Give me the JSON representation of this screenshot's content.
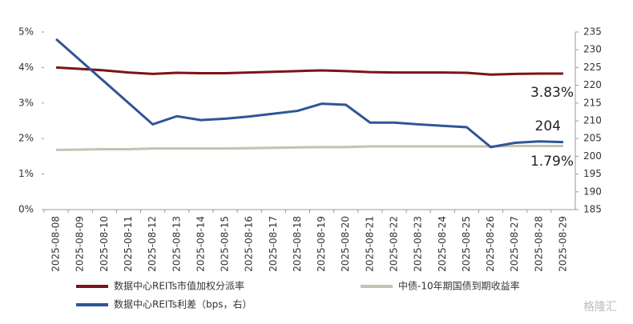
{
  "chart_data": {
    "type": "line",
    "categories": [
      "2025-08-08",
      "2025-08-09",
      "2025-08-10",
      "2025-08-11",
      "2025-08-12",
      "2025-08-13",
      "2025-08-14",
      "2025-08-15",
      "2025-08-16",
      "2025-08-17",
      "2025-08-18",
      "2025-08-19",
      "2025-08-20",
      "2025-08-21",
      "2025-08-22",
      "2025-08-23",
      "2025-08-24",
      "2025-08-25",
      "2025-08-26",
      "2025-08-27",
      "2025-08-28",
      "2025-08-29"
    ],
    "series": [
      {
        "name": "数据中心REITs市值加权分派率",
        "color": "#7b1416",
        "values": [
          4.0,
          3.96,
          3.92,
          3.86,
          3.82,
          3.85,
          3.84,
          3.84,
          3.86,
          3.88,
          3.9,
          3.92,
          3.9,
          3.87,
          3.86,
          3.86,
          3.86,
          3.85,
          3.8,
          3.82,
          3.83,
          3.83
        ]
      },
      {
        "name": "中债-10年期国债到期收益率",
        "color": "#c4c2b1",
        "values": [
          1.68,
          1.69,
          1.7,
          1.7,
          1.72,
          1.72,
          1.72,
          1.72,
          1.73,
          1.74,
          1.75,
          1.76,
          1.76,
          1.78,
          1.78,
          1.78,
          1.78,
          1.78,
          1.78,
          1.79,
          1.79,
          1.79
        ]
      },
      {
        "name": "数据中心REITs利差（bps，右）",
        "color": "#2f5597",
        "axis": "y2",
        "values": [
          233,
          227,
          221,
          215,
          209,
          211.3,
          210.2,
          210.6,
          211.2,
          212,
          212.8,
          214.8,
          214.5,
          209.5,
          209.5,
          209,
          208.6,
          208.2,
          202.6,
          203.8,
          204.2,
          204
        ]
      }
    ],
    "ylim": [
      0,
      5
    ],
    "yticks": [
      {
        "value": 0,
        "label": "0%"
      },
      {
        "value": 1,
        "label": "1%"
      },
      {
        "value": 2,
        "label": "2%"
      },
      {
        "value": 3,
        "label": "3%"
      },
      {
        "value": 4,
        "label": "4%"
      },
      {
        "value": 5,
        "label": "5%"
      }
    ],
    "y2lim": [
      185,
      235
    ],
    "y2ticks": [
      185,
      190,
      195,
      200,
      205,
      210,
      215,
      220,
      225,
      230,
      235
    ],
    "annotations": [
      "3.83%",
      "204",
      "1.79%"
    ],
    "watermark": "格隆汇"
  }
}
